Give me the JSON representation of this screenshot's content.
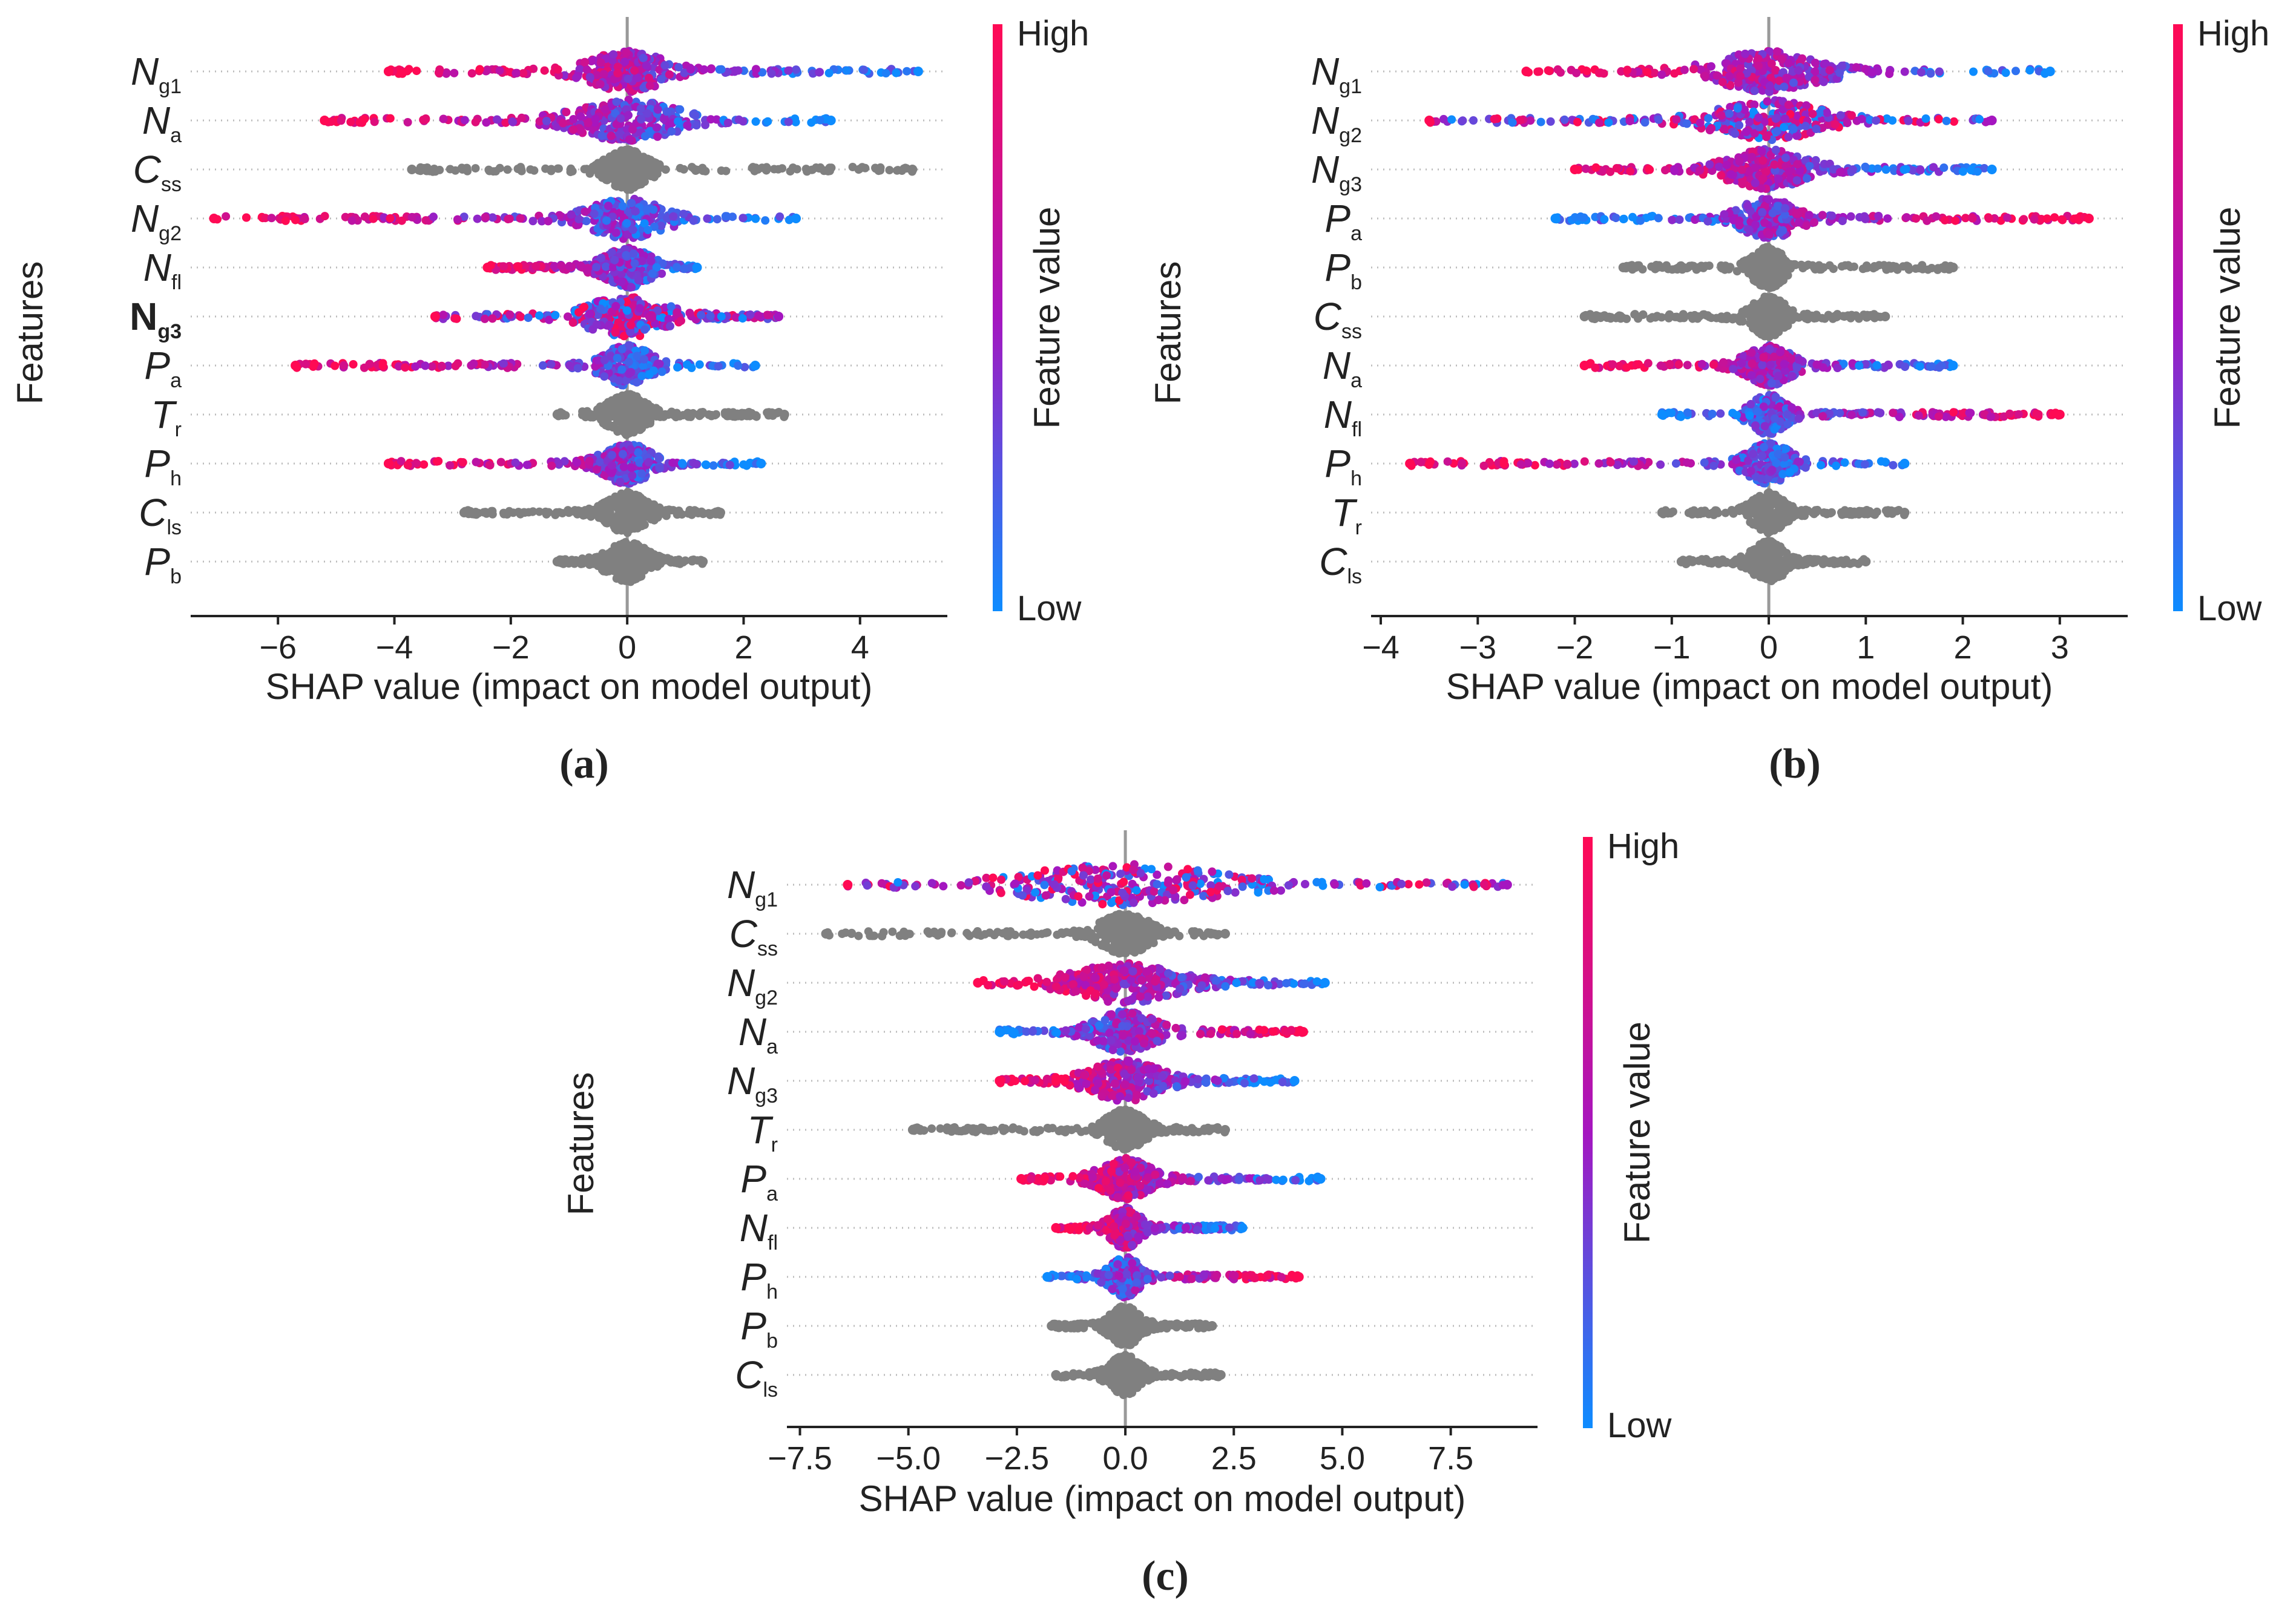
{
  "colors": {
    "high": "#ff0a54",
    "mid": "#a516c0",
    "low": "#0d8cff",
    "neutral": "#808080",
    "axis": "#222222",
    "zero_line": "#999999",
    "grid_dots": "#bbbbbb",
    "text": "#222222"
  },
  "chart_data": [
    {
      "panel_label_letter": "a",
      "type": "beeswarm",
      "title": "",
      "xlabel": "SHAP value (impact on model output)",
      "ylabel": "Features",
      "colorbar_label": "Feature value",
      "colorbar_high": "High",
      "colorbar_low": "Low",
      "xlim": [
        -7.5,
        5.5
      ],
      "xticks": [
        -6,
        -4,
        -2,
        0,
        2,
        4
      ],
      "xtick_labels": [
        "−6",
        "−4",
        "−2",
        "0",
        "2",
        "4"
      ],
      "features": [
        {
          "base": "N",
          "sub": "g1",
          "min": -4.1,
          "max": 5.0,
          "spread": 0.55,
          "pattern": "high-left",
          "bold": false
        },
        {
          "base": "N",
          "sub": "a",
          "min": -5.2,
          "max": 3.5,
          "spread": 0.75,
          "pattern": "high-left",
          "bold": false
        },
        {
          "base": "C",
          "sub": "ss",
          "min": -3.7,
          "max": 4.9,
          "spread": 0.3,
          "pattern": "gray",
          "bold": false
        },
        {
          "base": "N",
          "sub": "g2",
          "min": -7.1,
          "max": 2.9,
          "spread": 0.55,
          "pattern": "high-left",
          "bold": false
        },
        {
          "base": "N",
          "sub": "fl",
          "min": -2.4,
          "max": 1.2,
          "spread": 0.35,
          "pattern": "high-left",
          "bold": false
        },
        {
          "base": "N",
          "sub": "g3",
          "min": -3.3,
          "max": 2.6,
          "spread": 0.6,
          "pattern": "mixed",
          "bold": true
        },
        {
          "base": "P",
          "sub": "a",
          "min": -5.7,
          "max": 2.2,
          "spread": 0.35,
          "pattern": "high-left",
          "bold": false
        },
        {
          "base": "T",
          "sub": "r",
          "min": -1.2,
          "max": 2.7,
          "spread": 0.3,
          "pattern": "gray",
          "bold": false
        },
        {
          "base": "P",
          "sub": "h",
          "min": -4.1,
          "max": 2.3,
          "spread": 0.35,
          "pattern": "high-left",
          "bold": false
        },
        {
          "base": "C",
          "sub": "ls",
          "min": -2.8,
          "max": 1.6,
          "spread": 0.3,
          "pattern": "gray",
          "bold": false
        },
        {
          "base": "P",
          "sub": "b",
          "min": -1.2,
          "max": 1.3,
          "spread": 0.3,
          "pattern": "gray",
          "bold": false
        }
      ]
    },
    {
      "panel_label_letter": "b",
      "type": "beeswarm",
      "title": "",
      "xlabel": "SHAP value (impact on model output)",
      "ylabel": "Features",
      "colorbar_label": "Feature value",
      "colorbar_high": "High",
      "colorbar_low": "Low",
      "xlim": [
        -4.1,
        3.7
      ],
      "xticks": [
        -4,
        -3,
        -2,
        -1,
        0,
        1,
        2,
        3
      ],
      "xtick_labels": [
        "−4",
        "−3",
        "−2",
        "−1",
        "0",
        "1",
        "2",
        "3"
      ],
      "features": [
        {
          "base": "N",
          "sub": "g1",
          "min": -2.5,
          "max": 2.9,
          "spread": 0.45,
          "pattern": "high-left",
          "bold": false
        },
        {
          "base": "N",
          "sub": "g2",
          "min": -3.5,
          "max": 2.3,
          "spread": 0.45,
          "pattern": "mixed",
          "bold": false
        },
        {
          "base": "N",
          "sub": "g3",
          "min": -2.0,
          "max": 2.3,
          "spread": 0.35,
          "pattern": "high-left",
          "bold": false
        },
        {
          "base": "P",
          "sub": "a",
          "min": -2.2,
          "max": 3.3,
          "spread": 0.25,
          "pattern": "low-left",
          "bold": false
        },
        {
          "base": "P",
          "sub": "b",
          "min": -1.5,
          "max": 1.9,
          "spread": 0.15,
          "pattern": "gray",
          "bold": false
        },
        {
          "base": "C",
          "sub": "ss",
          "min": -1.9,
          "max": 1.2,
          "spread": 0.15,
          "pattern": "gray",
          "bold": false
        },
        {
          "base": "N",
          "sub": "a",
          "min": -1.9,
          "max": 1.9,
          "spread": 0.2,
          "pattern": "high-left",
          "bold": false
        },
        {
          "base": "N",
          "sub": "fl",
          "min": -1.1,
          "max": 3.0,
          "spread": 0.15,
          "pattern": "low-left",
          "bold": false
        },
        {
          "base": "P",
          "sub": "h",
          "min": -3.7,
          "max": 1.4,
          "spread": 0.2,
          "pattern": "high-left",
          "bold": false
        },
        {
          "base": "T",
          "sub": "r",
          "min": -1.1,
          "max": 1.4,
          "spread": 0.15,
          "pattern": "gray",
          "bold": false
        },
        {
          "base": "C",
          "sub": "ls",
          "min": -0.9,
          "max": 1.0,
          "spread": 0.15,
          "pattern": "gray",
          "bold": false
        }
      ]
    },
    {
      "panel_label_letter": "c",
      "type": "beeswarm",
      "title": "",
      "xlabel": "SHAP value (impact on model output)",
      "ylabel": "Features",
      "colorbar_label": "Feature value",
      "colorbar_high": "High",
      "colorbar_low": "Low",
      "xlim": [
        -7.8,
        9.5
      ],
      "xticks": [
        -7.5,
        -5.0,
        -2.5,
        0.0,
        2.5,
        5.0,
        7.5
      ],
      "xtick_labels": [
        "−7.5",
        "−5.0",
        "−2.5",
        "0.0",
        "2.5",
        "5.0",
        "7.5"
      ],
      "features": [
        {
          "base": "N",
          "sub": "g1",
          "min": -6.4,
          "max": 8.8,
          "spread": 2.0,
          "pattern": "mixed",
          "bold": false
        },
        {
          "base": "C",
          "sub": "ss",
          "min": -6.9,
          "max": 2.3,
          "spread": 0.5,
          "pattern": "gray",
          "bold": false
        },
        {
          "base": "N",
          "sub": "g2",
          "min": -3.4,
          "max": 4.6,
          "spread": 1.0,
          "pattern": "high-left",
          "bold": false
        },
        {
          "base": "N",
          "sub": "a",
          "min": -2.9,
          "max": 4.1,
          "spread": 0.6,
          "pattern": "low-left",
          "bold": false
        },
        {
          "base": "N",
          "sub": "g3",
          "min": -2.9,
          "max": 3.9,
          "spread": 0.7,
          "pattern": "high-left",
          "bold": false
        },
        {
          "base": "T",
          "sub": "r",
          "min": -4.9,
          "max": 2.3,
          "spread": 0.4,
          "pattern": "gray",
          "bold": false
        },
        {
          "base": "P",
          "sub": "a",
          "min": -2.4,
          "max": 4.5,
          "spread": 0.5,
          "pattern": "high-left",
          "bold": false
        },
        {
          "base": "N",
          "sub": "fl",
          "min": -1.6,
          "max": 2.7,
          "spread": 0.3,
          "pattern": "high-left",
          "bold": false
        },
        {
          "base": "P",
          "sub": "h",
          "min": -1.8,
          "max": 4.0,
          "spread": 0.3,
          "pattern": "low-left",
          "bold": false
        },
        {
          "base": "P",
          "sub": "b",
          "min": -1.7,
          "max": 2.0,
          "spread": 0.3,
          "pattern": "gray",
          "bold": false
        },
        {
          "base": "C",
          "sub": "ls",
          "min": -1.6,
          "max": 2.2,
          "spread": 0.3,
          "pattern": "gray",
          "bold": false
        }
      ]
    }
  ],
  "panel_labels": [
    "(a)",
    "(b)",
    "(c)"
  ]
}
